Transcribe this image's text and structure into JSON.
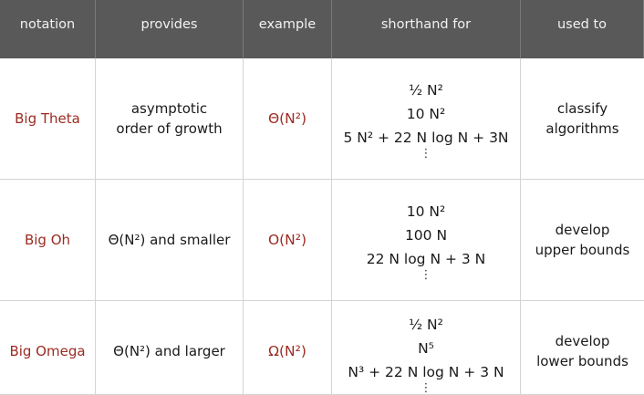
{
  "headers": [
    "notation",
    "provides",
    "example",
    "shorthand for",
    "used to"
  ],
  "rows": [
    {
      "notation": "Big Theta",
      "provides": [
        "asymptotic",
        "order of growth"
      ],
      "example": "Θ(N²)",
      "shorthand": [
        "½ N²",
        "10 N²",
        "5 N² + 22 N log N + 3N"
      ],
      "shorthand_more": "⋮",
      "used_to": [
        "classify",
        "algorithms"
      ]
    },
    {
      "notation": "Big Oh",
      "provides": [
        "Θ(N²) and smaller"
      ],
      "example": "O(N²)",
      "shorthand": [
        "10 N²",
        "100 N",
        "22 N log N + 3 N"
      ],
      "shorthand_more": "⋮",
      "used_to": [
        "develop",
        "upper bounds"
      ]
    },
    {
      "notation": "Big Omega",
      "provides": [
        "Θ(N²) and larger"
      ],
      "example": "Ω(N²)",
      "shorthand": [
        "½ N²",
        "N⁵",
        "N³ + 22 N log N + 3 N"
      ],
      "shorthand_more": "⋮",
      "used_to": [
        "develop",
        "lower bounds"
      ]
    }
  ],
  "colors": {
    "header_bg": "#595959",
    "accent_red": "#9b2b22"
  }
}
